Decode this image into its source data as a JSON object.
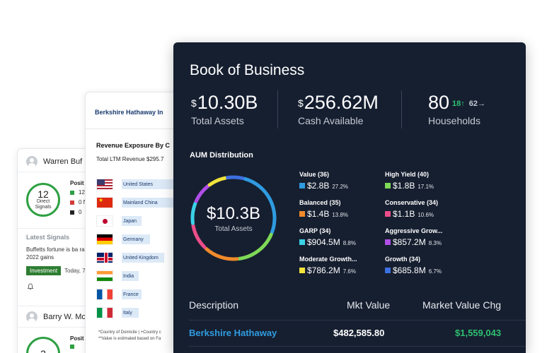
{
  "signals_card": {
    "users": [
      {
        "name": "Warren Buf",
        "count": "12",
        "count_label": "Direct Signals"
      },
      {
        "name": "Barry W. Mc",
        "count": "2"
      }
    ],
    "positions_title": "Posit",
    "positions": [
      {
        "color": "#2ea043",
        "text": "12"
      },
      {
        "color": "#d23a3a",
        "text": "0 N"
      },
      {
        "color": "#222222",
        "text": "0"
      }
    ],
    "second_positions_title": "Posit",
    "latest_signals_label": "Latest Signals",
    "signal_text": "Buffetts fortune is ba rare 2022 gains",
    "badge": "Investment",
    "date": "Today, 7",
    "bell_icon": "bell-icon"
  },
  "revenue_card": {
    "company": "Berkshire Hathaway In",
    "title": "Revenue Exposure By C",
    "total": "Total LTM Revenue $295.7",
    "rows": [
      {
        "flag": "us",
        "country": "United States",
        "fill": 0.98
      },
      {
        "flag": "cn",
        "country": "Mainland China",
        "fill": 0.98
      },
      {
        "flag": "jp",
        "country": "Japan",
        "fill": 0.35
      },
      {
        "flag": "de",
        "country": "Germany",
        "fill": 0.5
      },
      {
        "flag": "uk",
        "country": "United Kingdom",
        "fill": 0.75
      },
      {
        "flag": "in",
        "country": "India",
        "fill": 0.3
      },
      {
        "flag": "fr",
        "country": "France",
        "fill": 0.35
      },
      {
        "flag": "it",
        "country": "Italy",
        "fill": 0.3
      }
    ],
    "note_1": "*Country of Domicile | +Country c",
    "note_2": "**Value is estimated based on Fa"
  },
  "panel": {
    "title": "Book of Business",
    "kpis": {
      "total_assets": {
        "currency": "$",
        "value": "10.30B",
        "label": "Total Assets"
      },
      "cash": {
        "currency": "$",
        "value": "256.62M",
        "label": "Cash Available"
      },
      "households": {
        "value": "80",
        "up": "18",
        "flat": "62",
        "label": "Households"
      }
    },
    "aum": {
      "title": "AUM Distribution",
      "center_value": "$10.3B",
      "center_label": "Total Assets",
      "segments": [
        {
          "name": "Value (36)",
          "amount": "$2.8B",
          "pct": "27.2%",
          "color": "#2f9be0",
          "share": 0.272
        },
        {
          "name": "High Yield (40)",
          "amount": "$1.8B",
          "pct": "17.1%",
          "color": "#7ed957",
          "share": 0.171
        },
        {
          "name": "Balanced (35)",
          "amount": "$1.4B",
          "pct": "13.8%",
          "color": "#f08a2b",
          "share": 0.138
        },
        {
          "name": "Conservative (34)",
          "amount": "$1.1B",
          "pct": "10.6%",
          "color": "#ec4d8a",
          "share": 0.106
        },
        {
          "name": "GARP (34)",
          "amount": "$904.5M",
          "pct": "8.8%",
          "color": "#3ad1e6",
          "share": 0.088
        },
        {
          "name": "Aggressive Grow...",
          "amount": "$857.2M",
          "pct": "8.3%",
          "color": "#b04ee8",
          "share": 0.083
        },
        {
          "name": "Moderate Growth...",
          "amount": "$786.2M",
          "pct": "7.6%",
          "color": "#f1e33b",
          "share": 0.076
        },
        {
          "name": "Growth (34)",
          "amount": "$685.8M",
          "pct": "6.7%",
          "color": "#3d6fe0",
          "share": 0.067
        }
      ]
    },
    "table": {
      "headers": {
        "description": "Description",
        "mkt_value": "Mkt Value",
        "chg": "Market Value Chg"
      },
      "rows": [
        {
          "description": "Berkshire Hathaway",
          "mkt_value": "$482,585.80",
          "chg": "$1,559,043"
        }
      ]
    },
    "colors": {
      "background": "#161f30",
      "link": "#2f9be0",
      "positive": "#2fbf71"
    }
  }
}
